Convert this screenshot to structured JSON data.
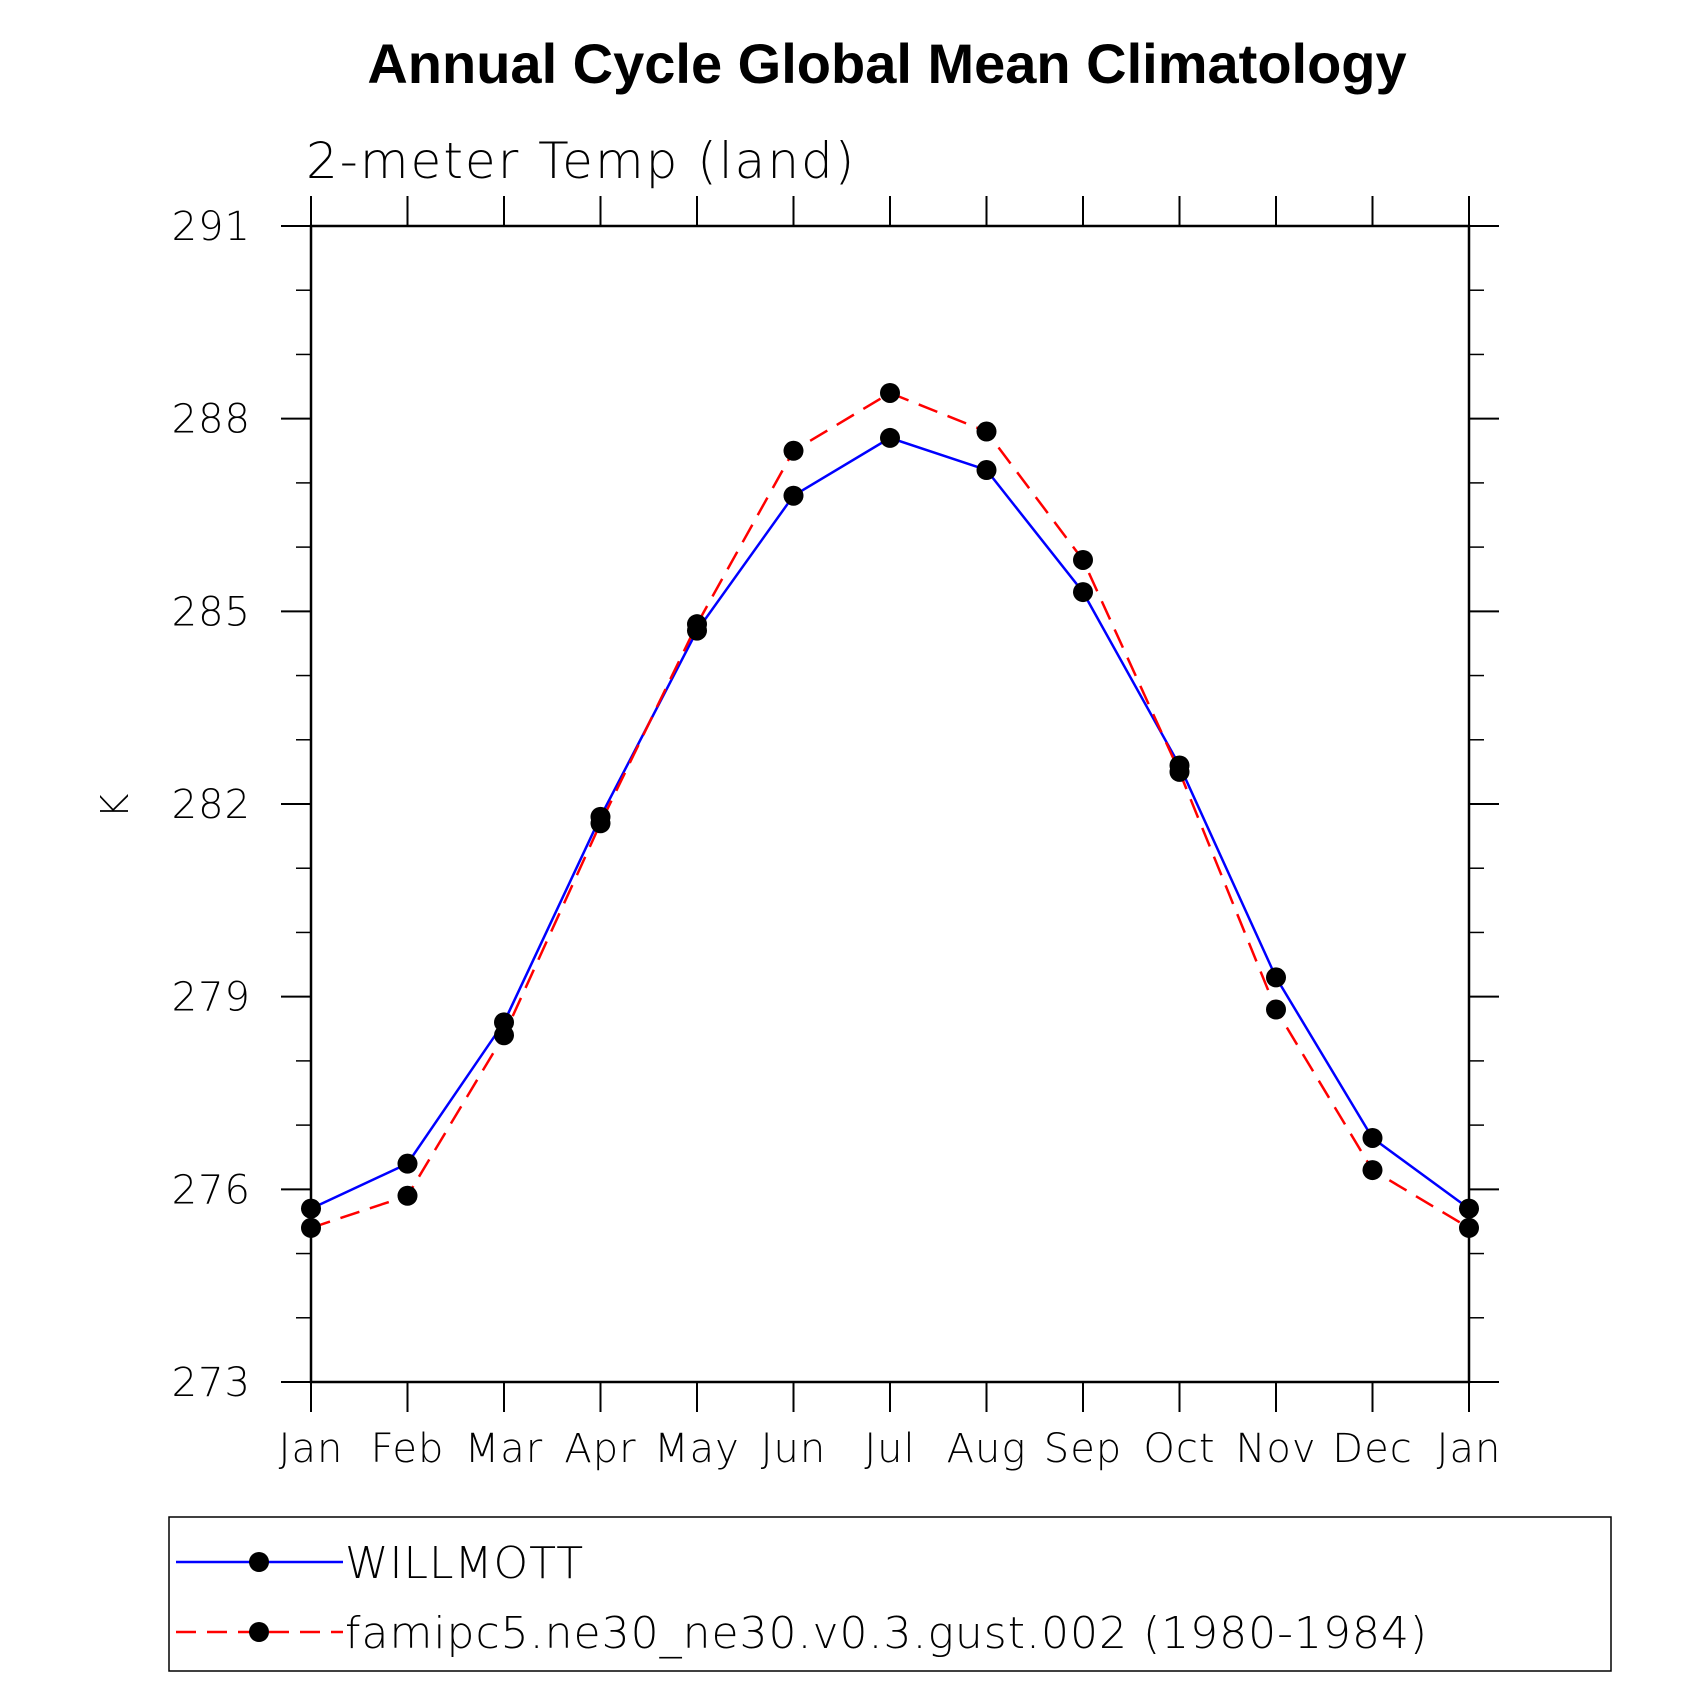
{
  "chart_data": {
    "type": "line",
    "title": "Annual Cycle Global Mean Climatology",
    "subtitle": "2-meter Temp (land)",
    "xlabel": "",
    "ylabel": "K",
    "categories": [
      "Jan",
      "Feb",
      "Mar",
      "Apr",
      "May",
      "Jun",
      "Jul",
      "Aug",
      "Sep",
      "Oct",
      "Nov",
      "Dec",
      "Jan"
    ],
    "ylim": [
      273,
      291
    ],
    "yticks": [
      "273",
      "276",
      "279",
      "282",
      "285",
      "288",
      "291"
    ],
    "grid": false,
    "legend_position": "bottom",
    "series": [
      {
        "name": "WILLMOTT",
        "color": "#0000ff",
        "line_style": "solid",
        "marker": "filled-circle",
        "values": [
          275.7,
          276.4,
          278.6,
          281.8,
          284.7,
          286.8,
          287.7,
          287.2,
          285.3,
          282.6,
          279.3,
          276.8,
          275.7
        ]
      },
      {
        "name": "famipc5.ne30_ne30.v0.3.gust.002 (1980-1984)",
        "color": "#ff0000",
        "line_style": "dashed",
        "marker": "filled-circle",
        "values": [
          275.4,
          275.9,
          278.4,
          281.7,
          284.8,
          287.5,
          288.4,
          287.8,
          285.8,
          282.5,
          278.8,
          276.3,
          275.4
        ]
      }
    ]
  }
}
